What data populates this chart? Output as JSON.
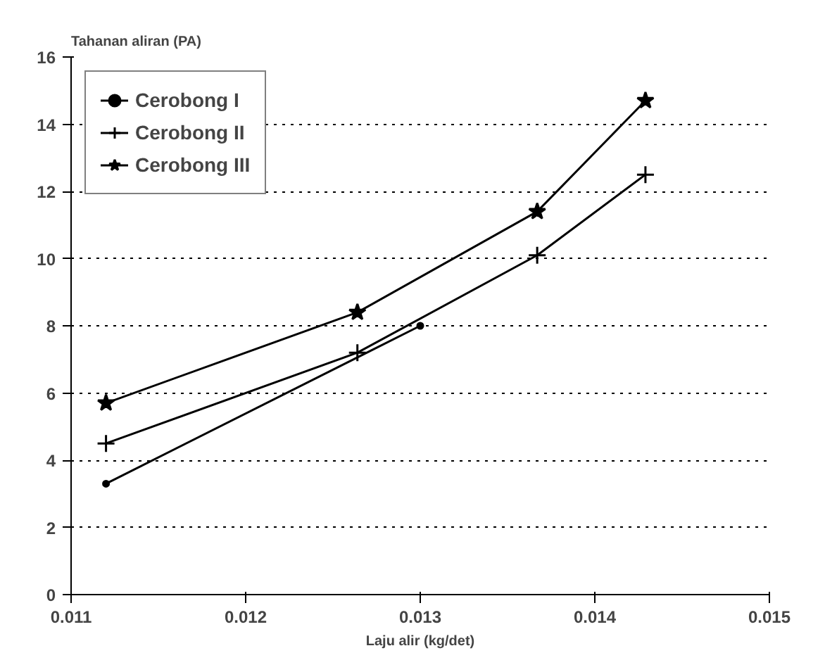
{
  "chart_data": {
    "type": "line",
    "ylabel": "Tahanan aliran (PA)",
    "xlabel": "Laju alir (kg/det)",
    "xlim": [
      0.011,
      0.015
    ],
    "ylim": [
      0,
      16
    ],
    "xticks": [
      0.011,
      0.012,
      0.013,
      0.014,
      0.015
    ],
    "yticks": [
      0,
      2,
      4,
      6,
      8,
      10,
      12,
      14,
      16
    ],
    "grid": "y",
    "legend": "top left",
    "line_style": "solid",
    "series": [
      {
        "name": "Cerobong I",
        "color": "#000000",
        "marker": "circle",
        "x": [
          0.0112,
          0.013
        ],
        "values": [
          3.3,
          8.0
        ]
      },
      {
        "name": "Cerobong II",
        "color": "#000000",
        "marker": "cross",
        "x": [
          0.0112,
          0.01264,
          0.01367,
          0.01429
        ],
        "values": [
          4.5,
          7.2,
          10.1,
          12.5
        ]
      },
      {
        "name": "Cerobong III",
        "color": "#000000",
        "marker": "star",
        "x": [
          0.0112,
          0.01264,
          0.01367,
          0.01429
        ],
        "values": [
          5.7,
          8.4,
          11.4,
          14.7
        ]
      }
    ]
  }
}
